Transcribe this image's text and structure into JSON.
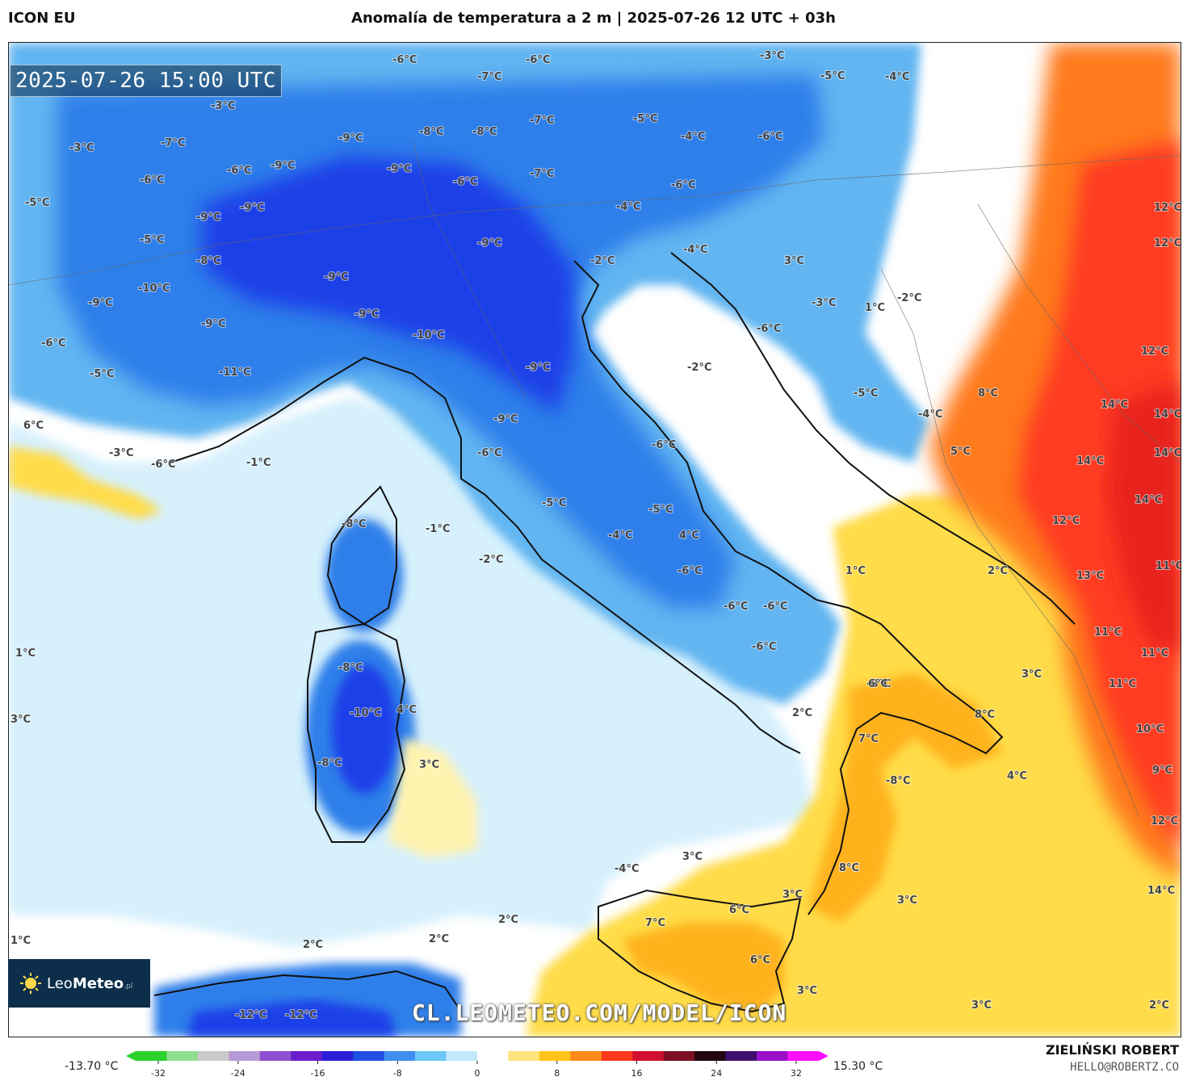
{
  "header": {
    "model": "ICON EU",
    "title": "Anomalía de temperatura a 2 m | 2025-07-26 12 UTC + 03h"
  },
  "valid_time": "2025-07-26 15:00 UTC",
  "watermark": "CL.LEOMETEO.COM/MODEL/ICON",
  "logo": {
    "name_light": "Leo",
    "name_bold": "Meteo",
    "suffix": ".pl"
  },
  "footer": {
    "author": "ZIELIŃSKI ROBERT",
    "contact": "HELLO@ROBERTZ.CO",
    "min_value": "-13.70 °C",
    "max_value": "15.30 °C"
  },
  "colorbar": {
    "ticks": [
      "-32",
      "-24",
      "-16",
      "-8",
      "0",
      "8",
      "16",
      "24",
      "32"
    ],
    "colors": [
      "#2dd12d",
      "#8fdd8f",
      "#c9c9c9",
      "#b69ad6",
      "#8f4fd0",
      "#6a1fc8",
      "#2a1fd8",
      "#1f4fe0",
      "#3f8ff0",
      "#6cc8f4",
      "#bfe9fb",
      "#ffffff",
      "#ffe27a",
      "#ffc21a",
      "#ff8a1a",
      "#ff3a1a",
      "#d01030",
      "#7a1020",
      "#200810",
      "#401070",
      "#9a10c8",
      "#ff10ff"
    ]
  },
  "map": {
    "colors": {
      "sea_neutral": "#ffffff",
      "cold_deep": "#1f3fe8",
      "cold_mid": "#2f7fea",
      "cold_light": "#62b5f1",
      "cold_pale": "#a8dbf8",
      "cold_faint": "#d6f0fc",
      "warm_faint": "#fff3b0",
      "warm_light": "#ffdc4a",
      "warm_mid": "#ffb21a",
      "warm_orange": "#ff7a1a",
      "hot_red": "#ff3a20",
      "hot_deep": "#e8201e",
      "coast": "#111111",
      "border": "#666666"
    },
    "labels": [
      {
        "text": "-6°C"
      },
      {
        "text": "-6°C"
      },
      {
        "text": "-3°C"
      },
      {
        "text": "-7°C"
      },
      {
        "text": "-5°C"
      },
      {
        "text": "-4°C"
      },
      {
        "text": "-7°C"
      },
      {
        "text": "-8°C"
      },
      {
        "text": "-8°C"
      },
      {
        "text": "-7°C"
      },
      {
        "text": "-5°C"
      },
      {
        "text": "-4°C"
      },
      {
        "text": "-6°C"
      },
      {
        "text": "-3°C"
      },
      {
        "text": "-3°C"
      },
      {
        "text": "-9°C"
      },
      {
        "text": "-9°C"
      },
      {
        "text": "-9°C"
      },
      {
        "text": "-6°C"
      },
      {
        "text": "-7°C"
      },
      {
        "text": "-6°C"
      },
      {
        "text": "-6°C"
      },
      {
        "text": "-9°C"
      },
      {
        "text": "-6°C"
      },
      {
        "text": "-4°C"
      },
      {
        "text": "-5°C"
      },
      {
        "text": "-9°C"
      },
      {
        "text": "-5°C"
      },
      {
        "text": "-9°C"
      },
      {
        "text": "-8°C"
      },
      {
        "text": "-4°C"
      },
      {
        "text": "-2°C"
      },
      {
        "text": "3°C"
      },
      {
        "text": "12°C"
      },
      {
        "text": "12°C"
      },
      {
        "text": "-9°C"
      },
      {
        "text": "-10°C"
      },
      {
        "text": "-9°C"
      },
      {
        "text": "-3°C"
      },
      {
        "text": "1°C"
      },
      {
        "text": "-2°C"
      },
      {
        "text": "-6°C"
      },
      {
        "text": "-9°C"
      },
      {
        "text": "-9°C"
      },
      {
        "text": "-10°C"
      },
      {
        "text": "-6°C"
      },
      {
        "text": "-5°C"
      },
      {
        "text": "-11°C"
      },
      {
        "text": "-9°C"
      },
      {
        "text": "-2°C"
      },
      {
        "text": "12°C"
      },
      {
        "text": "-5°C"
      },
      {
        "text": "8°C"
      },
      {
        "text": "14°C"
      },
      {
        "text": "14°C"
      },
      {
        "text": "-4°C"
      },
      {
        "text": "-9°C"
      },
      {
        "text": "6°C"
      },
      {
        "text": "-6°C"
      },
      {
        "text": "-3°C"
      },
      {
        "text": "-6°C"
      },
      {
        "text": "-6°C"
      },
      {
        "text": "5°C"
      },
      {
        "text": "14°C"
      },
      {
        "text": "14°C"
      },
      {
        "text": "-1°C"
      },
      {
        "text": "-8°C"
      },
      {
        "text": "-1°C"
      },
      {
        "text": "-5°C"
      },
      {
        "text": "-5°C"
      },
      {
        "text": "14°C"
      },
      {
        "text": "-2°C"
      },
      {
        "text": "-4°C"
      },
      {
        "text": "4°C"
      },
      {
        "text": "12°C"
      },
      {
        "text": "-6°C"
      },
      {
        "text": "1°C"
      },
      {
        "text": "2°C"
      },
      {
        "text": "13°C"
      },
      {
        "text": "11°C"
      },
      {
        "text": "-6°C"
      },
      {
        "text": "-6°C"
      },
      {
        "text": "11°C"
      },
      {
        "text": "11°C"
      },
      {
        "text": "1°C"
      },
      {
        "text": "-6°C"
      },
      {
        "text": "-8°C"
      },
      {
        "text": "3°C"
      },
      {
        "text": "-8°C"
      },
      {
        "text": "6°C"
      },
      {
        "text": "11°C"
      },
      {
        "text": "3°C"
      },
      {
        "text": "-10°C"
      },
      {
        "text": "4°C"
      },
      {
        "text": "2°C"
      },
      {
        "text": "8°C"
      },
      {
        "text": "10°C"
      },
      {
        "text": "-8°C"
      },
      {
        "text": "3°C"
      },
      {
        "text": "7°C"
      },
      {
        "text": "-8°C"
      },
      {
        "text": "4°C"
      },
      {
        "text": "9°C"
      },
      {
        "text": "3°C"
      },
      {
        "text": "8°C"
      },
      {
        "text": "12°C"
      },
      {
        "text": "-4°C"
      },
      {
        "text": "3°C"
      },
      {
        "text": "3°C"
      },
      {
        "text": "14°C"
      },
      {
        "text": "6°C"
      },
      {
        "text": "2°C"
      },
      {
        "text": "7°C"
      },
      {
        "text": "1°C"
      },
      {
        "text": "2°C"
      },
      {
        "text": "2°C"
      },
      {
        "text": "3°C"
      },
      {
        "text": "6°C"
      },
      {
        "text": "-12°C"
      },
      {
        "text": "-12°C"
      },
      {
        "text": "3°C"
      },
      {
        "text": "3°C"
      },
      {
        "text": "2°C"
      }
    ]
  }
}
